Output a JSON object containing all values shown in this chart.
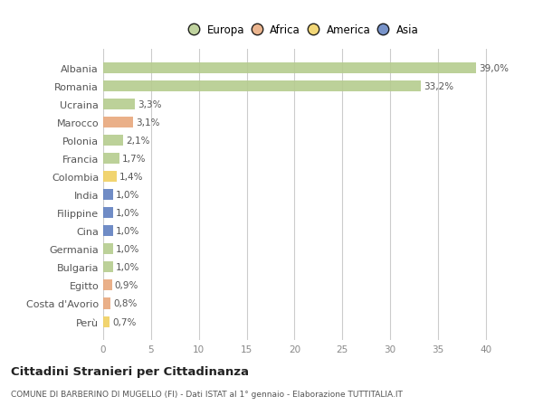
{
  "categories": [
    "Albania",
    "Romania",
    "Ucraina",
    "Marocco",
    "Polonia",
    "Francia",
    "Colombia",
    "India",
    "Filippine",
    "Cina",
    "Germania",
    "Bulgaria",
    "Egitto",
    "Costa d'Avorio",
    "Perù"
  ],
  "values": [
    39.0,
    33.2,
    3.3,
    3.1,
    2.1,
    1.7,
    1.4,
    1.0,
    1.0,
    1.0,
    1.0,
    1.0,
    0.9,
    0.8,
    0.7
  ],
  "labels": [
    "39,0%",
    "33,2%",
    "3,3%",
    "3,1%",
    "2,1%",
    "1,7%",
    "1,4%",
    "1,0%",
    "1,0%",
    "1,0%",
    "1,0%",
    "1,0%",
    "0,9%",
    "0,8%",
    "0,7%"
  ],
  "colors": [
    "#b5cc8e",
    "#b5cc8e",
    "#b5cc8e",
    "#e8a87c",
    "#b5cc8e",
    "#b5cc8e",
    "#f0d060",
    "#6080c0",
    "#6080c0",
    "#6080c0",
    "#b5cc8e",
    "#b5cc8e",
    "#e8a87c",
    "#e8a87c",
    "#f0d060"
  ],
  "legend_labels": [
    "Europa",
    "Africa",
    "America",
    "Asia"
  ],
  "legend_colors": [
    "#b5cc8e",
    "#e8a87c",
    "#f0d060",
    "#6080c0"
  ],
  "title": "Cittadini Stranieri per Cittadinanza",
  "subtitle": "COMUNE DI BARBERINO DI MUGELLO (FI) - Dati ISTAT al 1° gennaio - Elaborazione TUTTITALIA.IT",
  "xlim": [
    0,
    42
  ],
  "xticks": [
    0,
    5,
    10,
    15,
    20,
    25,
    30,
    35,
    40
  ],
  "bg_color": "#ffffff"
}
